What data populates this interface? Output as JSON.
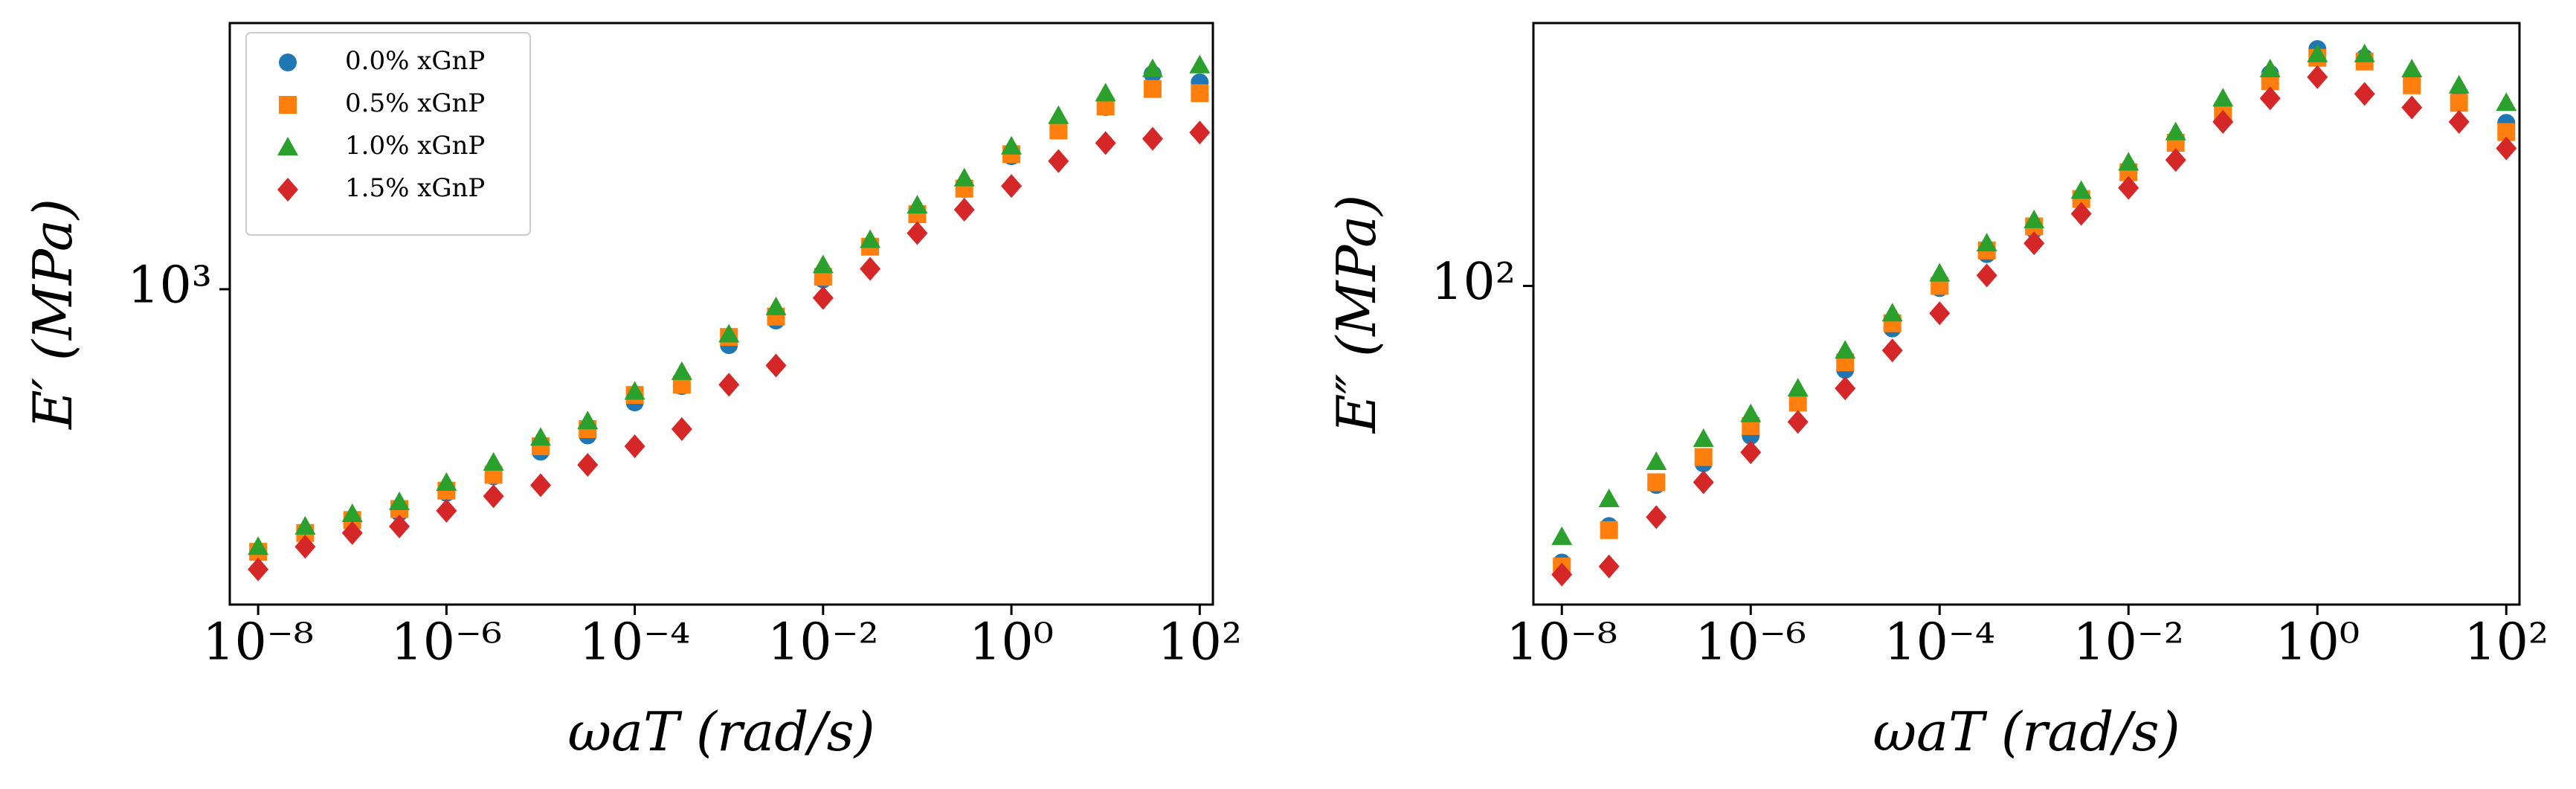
{
  "chart_data": [
    {
      "type": "scatter",
      "xlabel": "ωaT (rad/s)",
      "ylabel": "E′ (MPa)",
      "xlog": true,
      "ylog": true,
      "legend": "upper left",
      "xlim": [
        5e-09,
        138
      ],
      "ylim": [
        229,
        3470
      ],
      "xticks": [
        {
          "value": 1e-08,
          "label": "10⁻⁸"
        },
        {
          "value": 1e-06,
          "label": "10⁻⁶"
        },
        {
          "value": 0.0001,
          "label": "10⁻⁴"
        },
        {
          "value": 0.01,
          "label": "10⁻²"
        },
        {
          "value": 1,
          "label": "10⁰"
        },
        {
          "value": 100,
          "label": "10²"
        }
      ],
      "yticks": [
        {
          "value": 1000,
          "label": "10³"
        }
      ],
      "x": [
        1e-08,
        3.16e-08,
        1e-07,
        3.16e-07,
        1e-06,
        3.16e-06,
        1e-05,
        3.16e-05,
        0.0001,
        0.000316,
        0.001,
        0.00316,
        0.01,
        0.0316,
        0.1,
        0.316,
        1,
        3.16,
        10,
        31.6,
        100
      ],
      "series": [
        {
          "name": "0.0% xGnP",
          "color": "#1f77b4",
          "marker": "circle",
          "values": [
            293,
            318,
            336,
            352,
            386,
            417,
            468,
            505,
            589,
            636,
            770,
            864,
            1047,
            1221,
            1424,
            1597,
            1862,
            2120,
            2344,
            2733,
            2630
          ]
        },
        {
          "name": "0.5% xGnP",
          "color": "#ff7f0e",
          "marker": "square",
          "values": [
            293,
            320,
            340,
            358,
            390,
            420,
            480,
            520,
            610,
            640,
            800,
            880,
            1060,
            1220,
            1420,
            1600,
            1880,
            2100,
            2350,
            2550,
            2500
          ]
        },
        {
          "name": "1.0% xGnP",
          "color": "#2ca02c",
          "marker": "triangle",
          "values": [
            300,
            330,
            350,
            370,
            405,
            445,
            500,
            540,
            620,
            680,
            810,
            920,
            1120,
            1260,
            1480,
            1680,
            1950,
            2250,
            2500,
            2800,
            2850
          ]
        },
        {
          "name": "1.5% xGnP",
          "color": "#d62728",
          "marker": "diamond",
          "values": [
            270,
            300,
            320,
            330,
            355,
            380,
            400,
            440,
            480,
            520,
            640,
            700,
            960,
            1100,
            1300,
            1450,
            1620,
            1820,
            1980,
            2020,
            2080
          ]
        }
      ]
    },
    {
      "type": "scatter",
      "xlabel": "ωaT (rad/s)",
      "ylabel": "E″ (MPa)",
      "xlog": true,
      "ylog": true,
      "xlim": [
        5e-09,
        138
      ],
      "ylim": [
        22.6,
        341
      ],
      "xticks": [
        {
          "value": 1e-08,
          "label": "10⁻⁸"
        },
        {
          "value": 1e-06,
          "label": "10⁻⁶"
        },
        {
          "value": 0.0001,
          "label": "10⁻⁴"
        },
        {
          "value": 0.01,
          "label": "10⁻²"
        },
        {
          "value": 1,
          "label": "10⁰"
        },
        {
          "value": 100,
          "label": "10²"
        }
      ],
      "yticks": [
        {
          "value": 100,
          "label": "10²"
        }
      ],
      "x": [
        1e-08,
        3.16e-08,
        1e-07,
        3.16e-07,
        1e-06,
        3.16e-06,
        1e-05,
        3.16e-05,
        0.0001,
        0.000316,
        0.001,
        0.00316,
        0.01,
        0.0316,
        0.1,
        0.316,
        1,
        3.16,
        10,
        31.6,
        100
      ],
      "series": [
        {
          "color": "#1f77b4",
          "marker": "circle",
          "values": [
            27.5,
            32.6,
            39.5,
            43.7,
            49.7,
            58,
            67.6,
            82,
            99,
            116,
            130,
            151,
            170,
            198,
            231,
            269,
            302,
            290,
            259,
            240,
            214
          ]
        },
        {
          "color": "#ff7f0e",
          "marker": "square",
          "values": [
            27,
            32,
            40,
            45,
            52,
            58,
            70,
            84,
            100,
            118,
            132,
            150,
            170,
            195,
            225,
            260,
            290,
            285,
            255,
            235,
            205
          ]
        },
        {
          "color": "#2ca02c",
          "marker": "triangle",
          "values": [
            31,
            37,
            44,
            49,
            55,
            62,
            74,
            88,
            106,
            122,
            136,
            156,
            178,
            205,
            240,
            275,
            295,
            295,
            275,
            255,
            235
          ]
        },
        {
          "color": "#d62728",
          "marker": "diamond",
          "values": [
            26,
            27,
            34,
            40,
            46,
            53,
            62,
            74,
            88,
            105,
            122,
            140,
            158,
            180,
            215,
            240,
            265,
            245,
            230,
            215,
            190
          ]
        }
      ]
    }
  ]
}
